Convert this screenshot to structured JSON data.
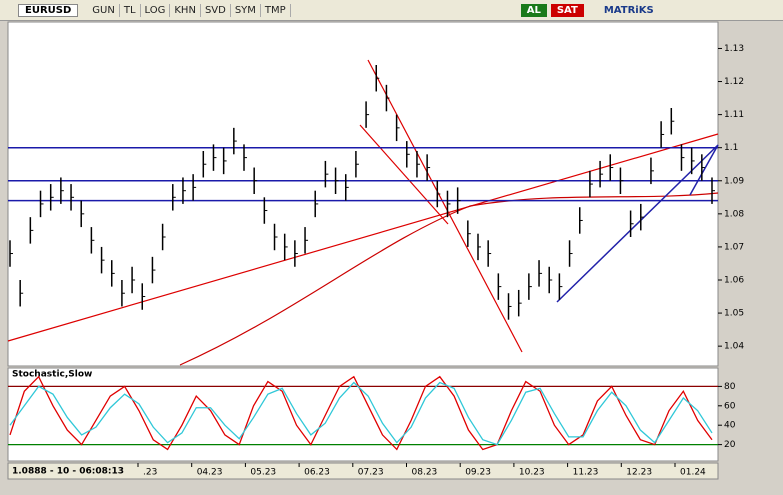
{
  "toolbar": {
    "symbol": "EURUSD",
    "buttons": [
      "GUN",
      "TL",
      "LOG",
      "KHN",
      "SVD",
      "SYM",
      "TMP"
    ],
    "buy": "AL",
    "sell": "SAT",
    "brand": "MATRiKS"
  },
  "status": "1.0888 - 10 - 06:08:13",
  "x_axis": [
    ".23",
    "04.23",
    "05.23",
    "06.23",
    "07.23",
    "08.23",
    "09.23",
    "10.23",
    "11.23",
    "12.23",
    "01.24"
  ],
  "chart_data": [
    {
      "type": "ohlc",
      "close": [
        1.068,
        1.056,
        1.075,
        1.083,
        1.085,
        1.087,
        1.085,
        1.08,
        1.072,
        1.066,
        1.062,
        1.056,
        1.06,
        1.055,
        1.063,
        1.073,
        1.085,
        1.087,
        1.088,
        1.095,
        1.097,
        1.096,
        1.102,
        1.097,
        1.09,
        1.081,
        1.073,
        1.07,
        1.068,
        1.072,
        1.083,
        1.092,
        1.09,
        1.088,
        1.095,
        1.11,
        1.121,
        1.115,
        1.106,
        1.098,
        1.095,
        1.094,
        1.086,
        1.083,
        1.084,
        1.074,
        1.07,
        1.068,
        1.058,
        1.052,
        1.053,
        1.058,
        1.062,
        1.06,
        1.058,
        1.068,
        1.078,
        1.089,
        1.092,
        1.094,
        1.09,
        1.077,
        1.079,
        1.093,
        1.104,
        1.108,
        1.097,
        1.096,
        1.094,
        1.087
      ],
      "high": [
        1.072,
        1.06,
        1.079,
        1.087,
        1.089,
        1.091,
        1.089,
        1.084,
        1.076,
        1.07,
        1.066,
        1.06,
        1.064,
        1.059,
        1.067,
        1.077,
        1.089,
        1.091,
        1.092,
        1.099,
        1.101,
        1.1,
        1.106,
        1.101,
        1.094,
        1.085,
        1.077,
        1.074,
        1.072,
        1.076,
        1.087,
        1.096,
        1.094,
        1.092,
        1.099,
        1.114,
        1.125,
        1.119,
        1.11,
        1.102,
        1.099,
        1.098,
        1.09,
        1.087,
        1.088,
        1.078,
        1.074,
        1.072,
        1.062,
        1.056,
        1.057,
        1.062,
        1.066,
        1.064,
        1.062,
        1.072,
        1.082,
        1.093,
        1.096,
        1.098,
        1.094,
        1.081,
        1.083,
        1.097,
        1.108,
        1.112,
        1.101,
        1.1,
        1.098,
        1.091
      ],
      "low": [
        1.064,
        1.052,
        1.071,
        1.079,
        1.081,
        1.083,
        1.081,
        1.076,
        1.068,
        1.062,
        1.058,
        1.052,
        1.056,
        1.051,
        1.059,
        1.069,
        1.081,
        1.083,
        1.084,
        1.091,
        1.093,
        1.092,
        1.098,
        1.093,
        1.086,
        1.077,
        1.069,
        1.066,
        1.064,
        1.068,
        1.079,
        1.088,
        1.086,
        1.084,
        1.091,
        1.106,
        1.117,
        1.111,
        1.102,
        1.094,
        1.091,
        1.09,
        1.082,
        1.079,
        1.08,
        1.07,
        1.066,
        1.064,
        1.054,
        1.048,
        1.049,
        1.054,
        1.058,
        1.056,
        1.054,
        1.064,
        1.074,
        1.085,
        1.088,
        1.09,
        1.086,
        1.073,
        1.075,
        1.089,
        1.1,
        1.104,
        1.093,
        1.092,
        1.09,
        1.083
      ],
      "color": "#000000",
      "levels": [
        1.1,
        1.09,
        1.084
      ],
      "level_color": "#1a1aaa",
      "ylim": [
        1.034,
        1.138
      ],
      "yticks": [
        1.04,
        1.05,
        1.06,
        1.07,
        1.08,
        1.09,
        1.1,
        1.11,
        1.12,
        1.13
      ]
    },
    {
      "type": "line",
      "title": "Stochastic,Slow",
      "series": [
        {
          "color": "#e00000",
          "values": [
            30,
            75,
            90,
            60,
            35,
            20,
            45,
            70,
            80,
            55,
            25,
            15,
            40,
            70,
            55,
            30,
            20,
            60,
            85,
            75,
            40,
            20,
            50,
            80,
            90,
            60,
            30,
            15,
            45,
            80,
            90,
            70,
            35,
            15,
            20,
            55,
            85,
            75,
            40,
            20,
            30,
            65,
            80,
            50,
            25,
            20,
            55,
            75,
            45,
            25
          ]
        },
        {
          "color": "#30c8d8",
          "values": [
            40,
            60,
            80,
            72,
            48,
            30,
            38,
            58,
            72,
            62,
            38,
            22,
            32,
            58,
            58,
            40,
            26,
            48,
            72,
            78,
            52,
            30,
            42,
            68,
            84,
            70,
            42,
            22,
            38,
            68,
            84,
            78,
            48,
            25,
            20,
            45,
            74,
            78,
            52,
            28,
            28,
            55,
            74,
            60,
            35,
            22,
            45,
            68,
            55,
            32
          ]
        }
      ],
      "levels": [
        80,
        20
      ],
      "level_colors": [
        "#8b0000",
        "#008000"
      ],
      "ylim": [
        0,
        100
      ],
      "yticks": [
        80,
        60,
        40,
        20
      ]
    }
  ]
}
